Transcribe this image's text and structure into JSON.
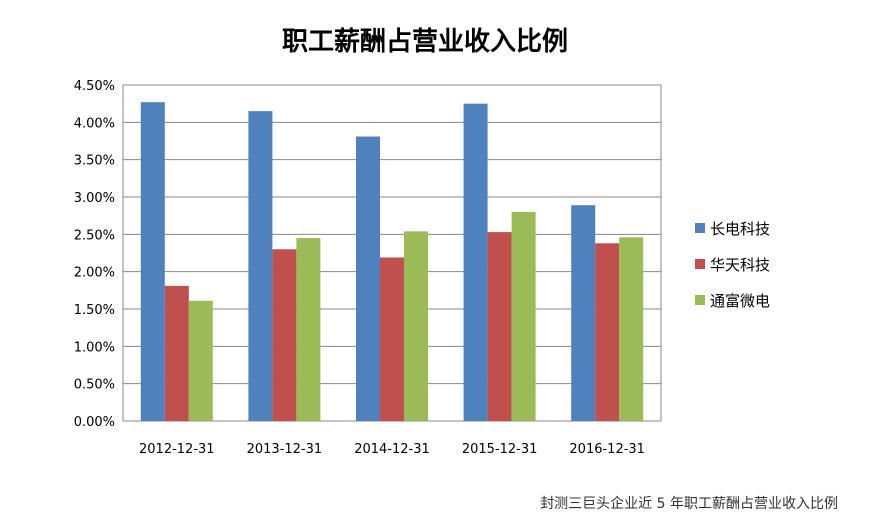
{
  "chart_data": {
    "type": "bar",
    "title": "职工薪酬占营业收入比例",
    "caption": "封测三巨头企业近 5 年职工薪酬占营业收入比例",
    "categories": [
      "2012-12-31",
      "2013-12-31",
      "2014-12-31",
      "2015-12-31",
      "2016-12-31"
    ],
    "ylim": [
      0,
      0.045
    ],
    "yticks": [
      "0.00%",
      "0.50%",
      "1.00%",
      "1.50%",
      "2.00%",
      "2.50%",
      "3.00%",
      "3.50%",
      "4.00%",
      "4.50%"
    ],
    "ytick_values": [
      0,
      0.005,
      0.01,
      0.015,
      0.02,
      0.025,
      0.03,
      0.035,
      0.04,
      0.045
    ],
    "grid": true,
    "legend_position": "right",
    "series": [
      {
        "name": "长电科技",
        "color": "#4F81BD",
        "values": [
          0.0427,
          0.0415,
          0.0381,
          0.0425,
          0.0289
        ]
      },
      {
        "name": "华天科技",
        "color": "#C0504D",
        "values": [
          0.0181,
          0.023,
          0.0219,
          0.0253,
          0.0238
        ]
      },
      {
        "name": "通富微电",
        "color": "#9BBB59",
        "values": [
          0.0161,
          0.0245,
          0.0254,
          0.028,
          0.0246
        ]
      }
    ]
  }
}
